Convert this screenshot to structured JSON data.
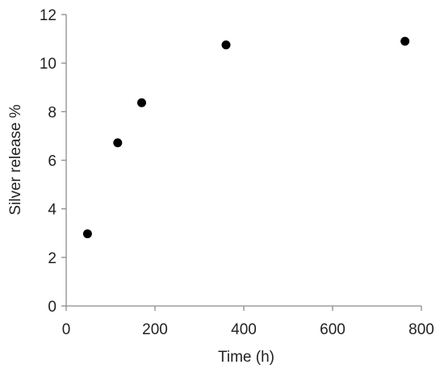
{
  "chart_data": {
    "type": "scatter",
    "title": "",
    "xlabel": "Time (h)",
    "ylabel": "Silver release %",
    "xlim": [
      0,
      800
    ],
    "ylim": [
      0,
      12
    ],
    "xticks": [
      0,
      200,
      400,
      600,
      800
    ],
    "yticks": [
      0,
      2,
      4,
      6,
      8,
      10,
      12
    ],
    "grid": false,
    "legend": "none",
    "series": [
      {
        "marker": "circle",
        "color": "#000000",
        "points": [
          {
            "x": 48,
            "y": 2.97
          },
          {
            "x": 116,
            "y": 6.72
          },
          {
            "x": 170,
            "y": 8.37
          },
          {
            "x": 360,
            "y": 10.75
          },
          {
            "x": 763,
            "y": 10.9
          }
        ]
      }
    ]
  }
}
